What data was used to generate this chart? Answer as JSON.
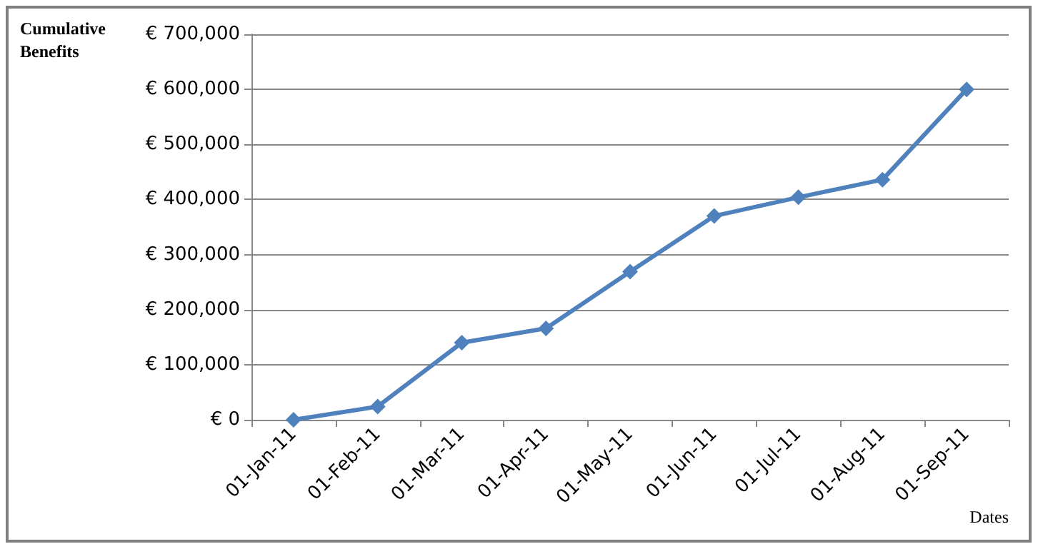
{
  "chart_data": {
    "type": "line",
    "xlabel": "Dates",
    "ylabel": "Cumulative Benefits",
    "categories": [
      "01-Jan-11",
      "01-Feb-11",
      "01-Mar-11",
      "01-Apr-11",
      "01-May-11",
      "01-Jun-11",
      "01-Jul-11",
      "01-Aug-11",
      "01-Sep-11"
    ],
    "series": [
      {
        "color": "#4f81bd",
        "values": [
          0,
          24000,
          140000,
          166000,
          269000,
          370000,
          404000,
          436000,
          600000
        ]
      }
    ],
    "ylim": [
      0,
      700000
    ],
    "yticks": [
      {
        "value": 0,
        "label": "€ 0"
      },
      {
        "value": 100000,
        "label": "€ 100,000"
      },
      {
        "value": 200000,
        "label": "€ 200,000"
      },
      {
        "value": 300000,
        "label": "€ 300,000"
      },
      {
        "value": 400000,
        "label": "€ 400,000"
      },
      {
        "value": 500000,
        "label": "€ 500,000"
      },
      {
        "value": 600000,
        "label": "€ 600,000"
      },
      {
        "value": 700000,
        "label": "€ 700,000"
      }
    ],
    "grid": "y",
    "marker": "diamond",
    "line_style": "solid"
  }
}
